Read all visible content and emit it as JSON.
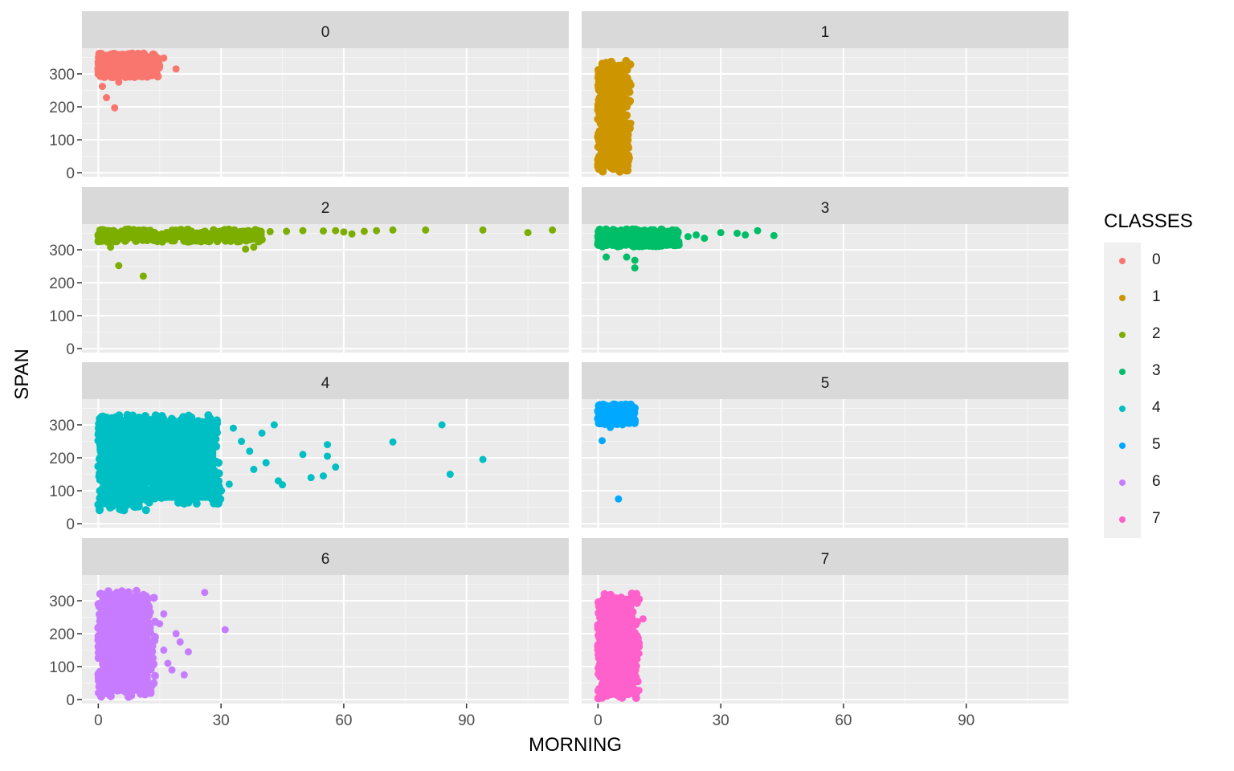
{
  "chart_data": {
    "type": "scatter",
    "facet_by": "CLASSES",
    "xlabel": "MORNING",
    "ylabel": "SPAN",
    "legend_title": "CLASSES",
    "legend_position": "right",
    "grid": true,
    "xlim": [
      -4,
      115
    ],
    "ylim": [
      -12,
      378
    ],
    "x_ticks": [
      0,
      30,
      60,
      90
    ],
    "y_ticks": [
      0,
      100,
      200,
      300
    ],
    "x_tick_labels": [
      "0",
      "30",
      "60",
      "90"
    ],
    "y_tick_labels": [
      "0",
      "100",
      "200",
      "300"
    ],
    "panels": [
      {
        "label": "0",
        "color": "#F8766D",
        "core": [
          {
            "x": [
              0,
              15
            ],
            "y": [
              290,
              362
            ]
          }
        ],
        "points": [
          [
            16,
            348
          ],
          [
            19,
            315
          ],
          [
            1,
            262
          ],
          [
            2,
            228
          ],
          [
            4,
            197
          ],
          [
            5,
            275
          ],
          [
            8,
            298
          ]
        ]
      },
      {
        "label": "1",
        "color": "#CD9600",
        "core": [
          {
            "x": [
              0,
              8
            ],
            "y": [
              3,
              340
            ]
          }
        ],
        "points": [
          [
            2,
            335
          ],
          [
            7,
            200
          ],
          [
            8,
            150
          ],
          [
            1,
            5
          ]
        ]
      },
      {
        "label": "2",
        "color": "#7CAE00",
        "core": [
          {
            "x": [
              0,
              40
            ],
            "y": [
              325,
              362
            ]
          }
        ],
        "points": [
          [
            3,
            308
          ],
          [
            5,
            252
          ],
          [
            11,
            220
          ],
          [
            36,
            302
          ],
          [
            38,
            308
          ],
          [
            42,
            355
          ],
          [
            46,
            356
          ],
          [
            50,
            358
          ],
          [
            55,
            357
          ],
          [
            58,
            358
          ],
          [
            60,
            354
          ],
          [
            62,
            348
          ],
          [
            65,
            356
          ],
          [
            68,
            358
          ],
          [
            72,
            360
          ],
          [
            80,
            360
          ],
          [
            94,
            360
          ],
          [
            105,
            352
          ],
          [
            111,
            360
          ]
        ]
      },
      {
        "label": "3",
        "color": "#00BE67",
        "core": [
          {
            "x": [
              0,
              20
            ],
            "y": [
              310,
              362
            ]
          }
        ],
        "points": [
          [
            2,
            278
          ],
          [
            7,
            278
          ],
          [
            9,
            268
          ],
          [
            9,
            245
          ],
          [
            22,
            340
          ],
          [
            24,
            345
          ],
          [
            26,
            335
          ],
          [
            30,
            352
          ],
          [
            34,
            350
          ],
          [
            36,
            345
          ],
          [
            39,
            358
          ],
          [
            43,
            343
          ]
        ]
      },
      {
        "label": "4",
        "color": "#00BFC4",
        "core": [
          {
            "x": [
              0,
              12
            ],
            "y": [
              40,
              330
            ]
          },
          {
            "x": [
              12,
              30
            ],
            "y": [
              60,
              330
            ]
          }
        ],
        "points": [
          [
            33,
            290
          ],
          [
            35,
            250
          ],
          [
            37,
            220
          ],
          [
            40,
            275
          ],
          [
            43,
            300
          ],
          [
            45,
            118
          ],
          [
            44,
            130
          ],
          [
            50,
            210
          ],
          [
            52,
            140
          ],
          [
            55,
            145
          ],
          [
            56,
            205
          ],
          [
            56,
            240
          ],
          [
            58,
            172
          ],
          [
            72,
            248
          ],
          [
            84,
            300
          ],
          [
            86,
            150
          ],
          [
            94,
            195
          ],
          [
            32,
            120
          ],
          [
            38,
            165
          ],
          [
            41,
            185
          ]
        ]
      },
      {
        "label": "5",
        "color": "#00A9FF",
        "core": [
          {
            "x": [
              0,
              9
            ],
            "y": [
              302,
              362
            ]
          }
        ],
        "points": [
          [
            1,
            252
          ],
          [
            5,
            75
          ],
          [
            3,
            292
          ],
          [
            6,
            300
          ]
        ]
      },
      {
        "label": "6",
        "color": "#C77CFF",
        "core": [
          {
            "x": [
              0,
              14
            ],
            "y": [
              8,
              330
            ]
          }
        ],
        "points": [
          [
            15,
            230
          ],
          [
            16,
            150
          ],
          [
            17,
            110
          ],
          [
            18,
            90
          ],
          [
            19,
            200
          ],
          [
            20,
            175
          ],
          [
            21,
            75
          ],
          [
            22,
            145
          ],
          [
            26,
            325
          ],
          [
            31,
            212
          ],
          [
            16,
            260
          ]
        ]
      },
      {
        "label": "7",
        "color": "#FF61CC",
        "core": [
          {
            "x": [
              0,
              10
            ],
            "y": [
              3,
              325
            ]
          }
        ],
        "points": [
          [
            11,
            245
          ],
          [
            10,
            28
          ],
          [
            9,
            80
          ],
          [
            9,
            300
          ],
          [
            10,
            140
          ]
        ]
      }
    ]
  }
}
